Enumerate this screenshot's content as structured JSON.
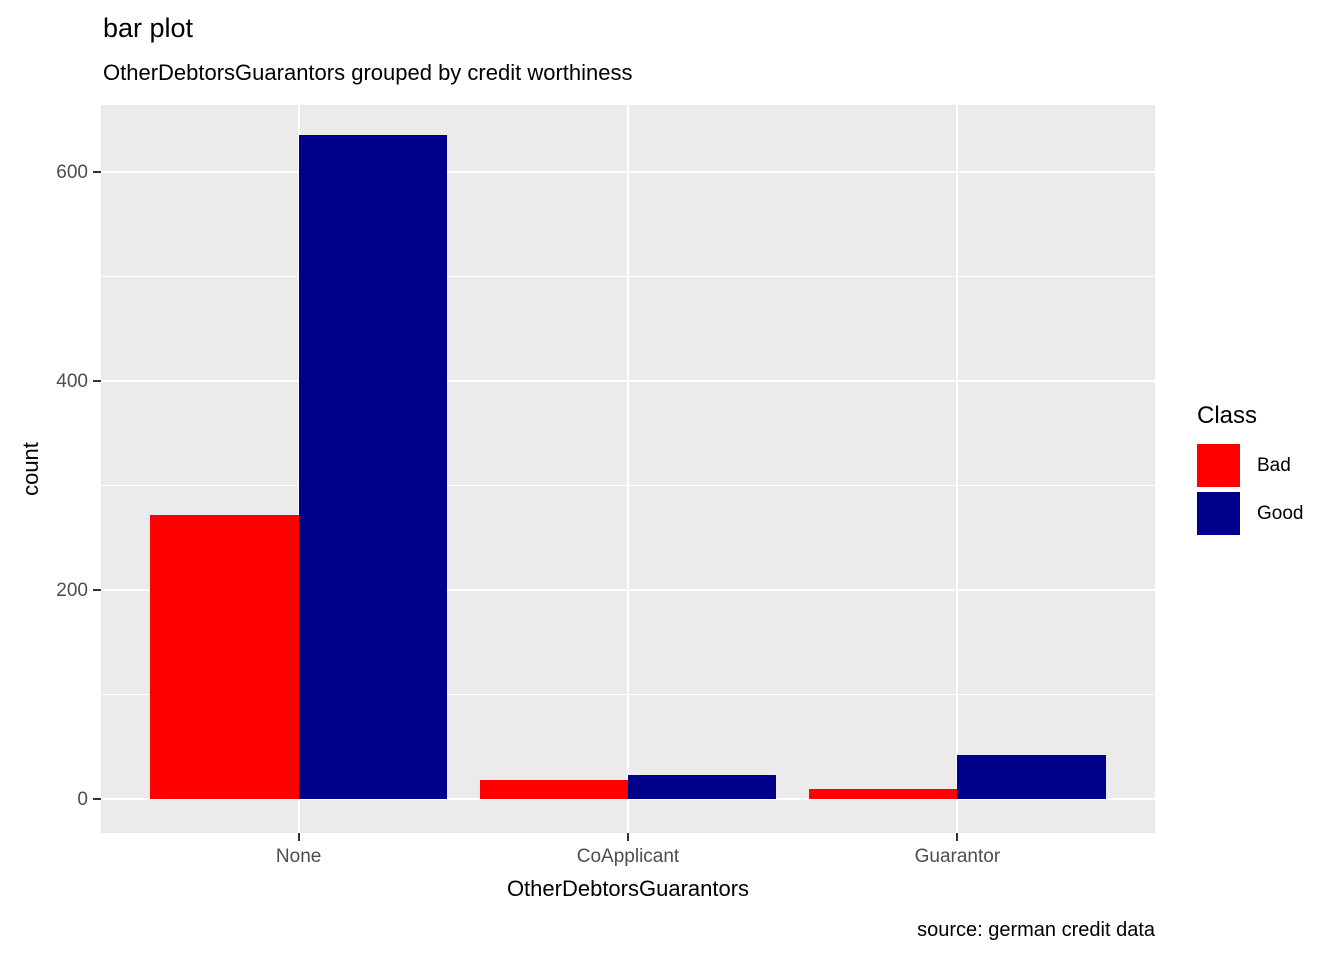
{
  "title": "bar plot",
  "subtitle": "OtherDebtorsGuarantors grouped by credit worthiness",
  "caption": "source: german credit data",
  "chart_data": {
    "type": "bar",
    "grouping": "dodge",
    "categories": [
      "None",
      "CoApplicant",
      "Guarantor"
    ],
    "series": [
      {
        "name": "Bad",
        "color": "#FF0000",
        "values": [
          272,
          18,
          10
        ]
      },
      {
        "name": "Good",
        "color": "#00008B",
        "values": [
          635,
          23,
          42
        ]
      }
    ],
    "xlabel": "OtherDebtorsGuarantors",
    "ylabel": "count",
    "ylim": [
      0,
      660
    ],
    "yticks_major": [
      0,
      200,
      400,
      600
    ],
    "yticks_minor": [
      100,
      300,
      500
    ],
    "grid": true,
    "legend": {
      "title": "Class",
      "position": "right"
    },
    "colors": {
      "panel_background": "#EBEBEB",
      "gridline": "#FFFFFF",
      "tick_label": "#4D4D4D",
      "axis_tick": "#333333",
      "text": "#000000"
    }
  }
}
